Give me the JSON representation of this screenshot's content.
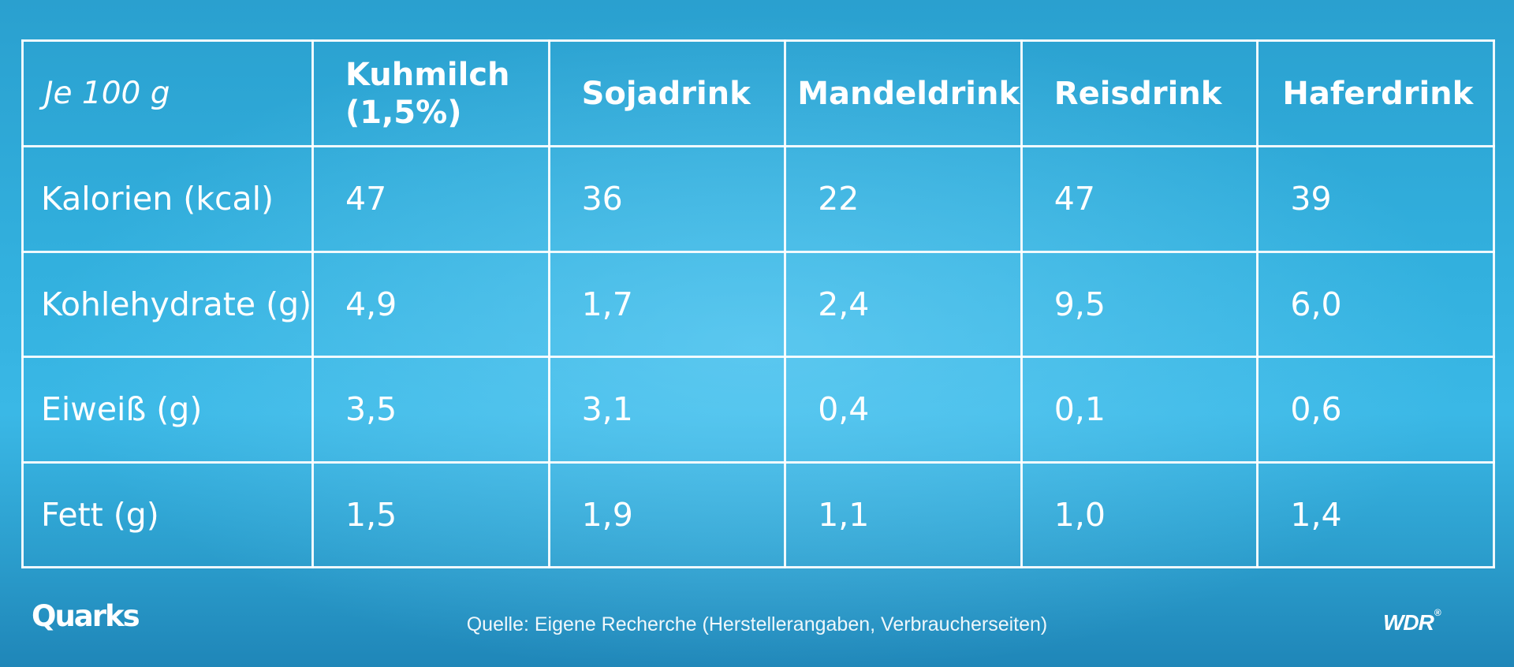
{
  "chart_data": {
    "type": "table",
    "corner_label": "Je 100 g",
    "columns": [
      "Kuhmilch\n(1,5%)",
      "Sojadrink",
      "Mandeldrink",
      "Reisdrink",
      "Haferdrink"
    ],
    "rows": [
      {
        "label": "Kalorien (kcal)",
        "values": [
          "47",
          "36",
          "22",
          "47",
          "39"
        ]
      },
      {
        "label": "Kohlehydrate (g)",
        "values": [
          "4,9",
          "1,7",
          "2,4",
          "9,5",
          "6,0"
        ]
      },
      {
        "label": "Eiweiß (g)",
        "values": [
          "3,5",
          "3,1",
          "0,4",
          "0,1",
          "0,6"
        ]
      },
      {
        "label": "Fett (g)",
        "values": [
          "1,5",
          "1,9",
          "1,1",
          "1,0",
          "1,4"
        ]
      }
    ]
  },
  "footer": {
    "brand_left": "Quarks",
    "source": "Quelle: Eigene Recherche (Herstellerangaben, Verbraucherseiten)",
    "brand_right": "WDR",
    "brand_right_mark": "®"
  },
  "colors": {
    "background": "#32b0de",
    "grid": "#ffffff",
    "text": "#ffffff"
  }
}
